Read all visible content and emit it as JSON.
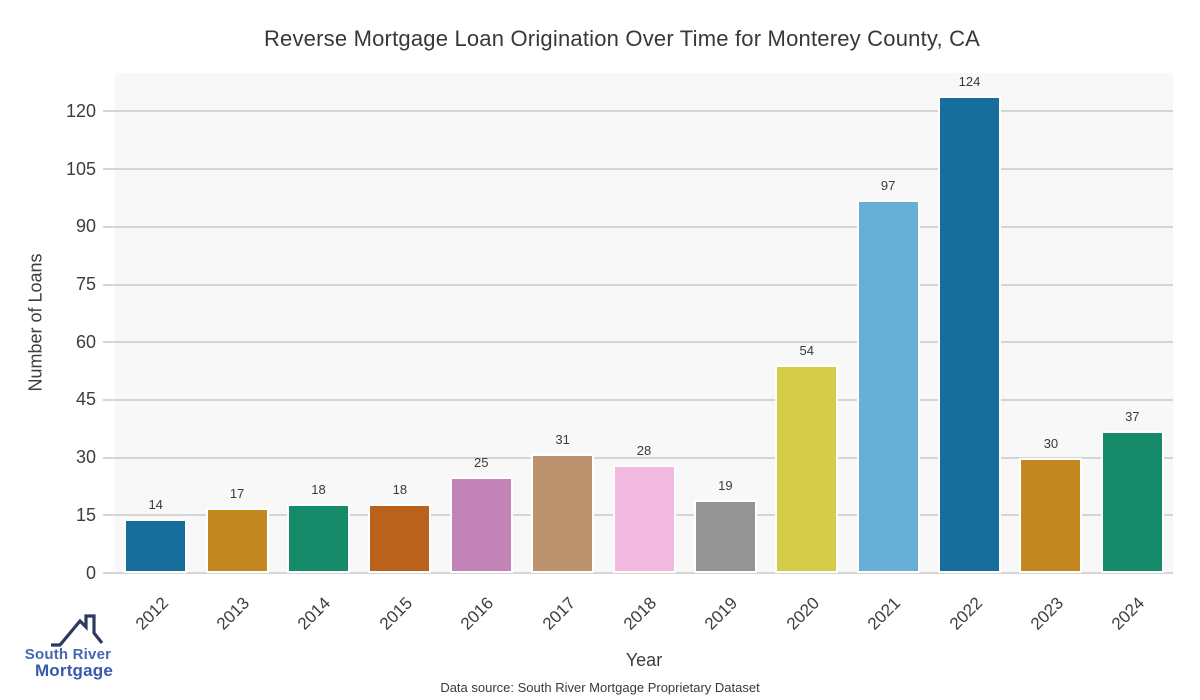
{
  "chart_data": {
    "type": "bar",
    "title": "Reverse Mortgage Loan Origination Over Time for Monterey County, CA",
    "xlabel": "Year",
    "ylabel": "Number of Loans",
    "categories": [
      "2012",
      "2013",
      "2014",
      "2015",
      "2016",
      "2017",
      "2018",
      "2019",
      "2020",
      "2021",
      "2022",
      "2023",
      "2024"
    ],
    "values": [
      14,
      17,
      18,
      18,
      25,
      31,
      28,
      19,
      54,
      97,
      124,
      30,
      37
    ],
    "bar_colors": [
      "#176d9c",
      "#c38820",
      "#168b6a",
      "#ba611b",
      "#c283b6",
      "#bd926e",
      "#f2b9e0",
      "#949494",
      "#d5cd4a",
      "#68afd7",
      "#176d9c",
      "#c38820",
      "#168b6a"
    ],
    "ylim": [
      0,
      130
    ],
    "yticks": [
      0,
      15,
      30,
      45,
      60,
      75,
      90,
      105,
      120
    ],
    "grid": "horizontal",
    "legend": "none",
    "value_labels": true,
    "plot_background": "#f8f8f8",
    "grid_color": "#d5d5d5",
    "bar_edge_color": "#ffffff",
    "text_color": "#3d3d3d"
  },
  "footer": {
    "text": "Data source: South River Mortgage Proprietary Dataset"
  },
  "logo": {
    "line1": "South River",
    "line2": "Mortgage",
    "line1_color": "#4767b2",
    "line2_color": "#3a58ac",
    "roof_color": "#2c3a5e"
  }
}
